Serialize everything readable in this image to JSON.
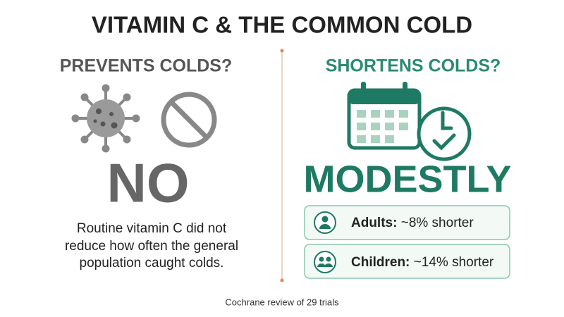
{
  "title": "VITAMIN C & THE COMMON COLD",
  "left": {
    "heading": "PREVENTS COLDS?",
    "verdict": "NO",
    "text_lines": [
      "Routine vitamin C did not",
      "reduce how often the general",
      "population caught colds."
    ]
  },
  "right": {
    "heading": "SHORTENS COLDS?",
    "verdict": "MODESTLY",
    "items": [
      {
        "group": "Adults:",
        "effect": "~8% shorter"
      },
      {
        "group": "Children:",
        "effect": "~14% shorter"
      }
    ]
  },
  "source": "Cochrane review of 29 trials"
}
